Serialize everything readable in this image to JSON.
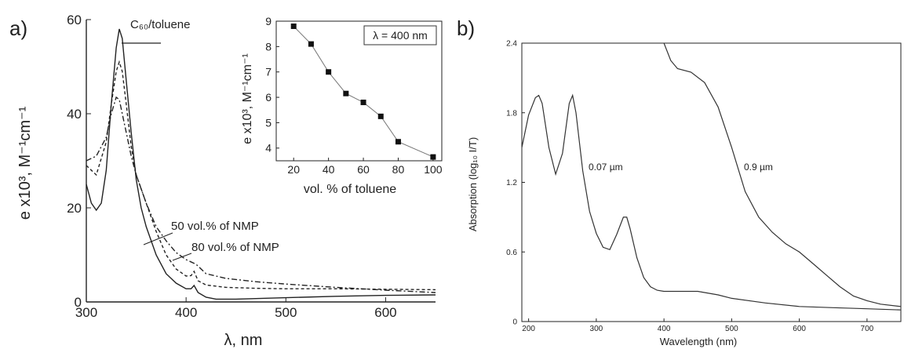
{
  "panels": {
    "a": {
      "label": "a)",
      "chart_data": {
        "type": "line",
        "xlabel": "λ, nm",
        "ylabel": "e x10³, M⁻¹cm⁻¹",
        "xlim": [
          300,
          650
        ],
        "ylim": [
          0,
          60
        ],
        "xticks": [
          300,
          400,
          500,
          600
        ],
        "yticks": [
          0,
          20,
          40,
          60
        ],
        "grid": false,
        "annotations": [
          "C₆₀/toluene",
          "50 vol.% of NMP",
          "80 vol.% of NMP"
        ],
        "series": [
          {
            "name": "C₆₀/toluene",
            "style": "solid",
            "x": [
              300,
              305,
              310,
              315,
              320,
              325,
              330,
              333,
              336,
              340,
              345,
              350,
              355,
              360,
              370,
              380,
              390,
              400,
              405,
              408,
              412,
              420,
              430,
              450,
              500,
              550,
              600,
              650
            ],
            "y": [
              25,
              21,
              19.5,
              21,
              28,
              42,
              54,
              58,
              56,
              47,
              36,
              26,
              20,
              16,
              10,
              6,
              4,
              2.8,
              2.8,
              3.5,
              2,
              1,
              0.6,
              0.6,
              0.9,
              1.2,
              1.4,
              1.5
            ]
          },
          {
            "name": "80 vol.% of NMP",
            "style": "dashed",
            "x": [
              300,
              310,
              320,
              325,
              330,
              333,
              336,
              340,
              345,
              350,
              360,
              370,
              380,
              390,
              400,
              405,
              408,
              412,
              420,
              440,
              470,
              500,
              550,
              600,
              650
            ],
            "y": [
              29,
              27,
              34,
              42,
              49,
              51,
              49,
              42,
              33,
              27,
              21,
              15,
              10,
              7,
              5.5,
              5.6,
              6.5,
              4.5,
              3.6,
              3.1,
              2.9,
              2.8,
              2.8,
              2.7,
              2.6
            ]
          },
          {
            "name": "50 vol.% of NMP",
            "style": "dashdot",
            "x": [
              300,
              310,
              320,
              325,
              330,
              333,
              336,
              340,
              345,
              350,
              360,
              370,
              380,
              390,
              400,
              410,
              420,
              440,
              470,
              500,
              550,
              600,
              650
            ],
            "y": [
              30,
              31,
              35,
              40,
              43.5,
              43,
              40,
              36,
              31,
              27,
              21,
              16,
              13,
              10.5,
              9,
              8,
              6,
              5,
              4.3,
              3.8,
              3.1,
              2.5,
              2
            ]
          }
        ]
      },
      "inset": {
        "chart_data": {
          "type": "line",
          "xlabel": "vol. % of toluene",
          "ylabel": "e x10³, M⁻¹cm⁻¹",
          "xlim": [
            10,
            105
          ],
          "ylim": [
            3.5,
            9
          ],
          "xticks": [
            20,
            40,
            60,
            80,
            100
          ],
          "yticks": [
            4,
            5,
            6,
            7,
            8,
            9
          ],
          "grid": false,
          "legend": "λ = 400 nm",
          "series": [
            {
              "x": [
                20,
                30,
                40,
                50,
                60,
                70,
                80,
                100
              ],
              "y": [
                8.8,
                8.1,
                7.0,
                6.15,
                5.8,
                5.25,
                4.25,
                3.65
              ]
            }
          ]
        }
      }
    },
    "b": {
      "label": "b)",
      "chart_data": {
        "type": "line",
        "xlabel": "Wavelength (nm)",
        "ylabel": "Absorption (log₁₀ I/T)",
        "xlim": [
          190,
          750
        ],
        "ylim": [
          0,
          2.4
        ],
        "xticks": [
          200,
          300,
          400,
          500,
          600,
          700
        ],
        "yticks": [
          0,
          0.6,
          1.2,
          1.8,
          2.4
        ],
        "grid": false,
        "annotations": [
          "0.07 µm",
          "0.9 µm"
        ],
        "series": [
          {
            "name": "0.07 µm",
            "x": [
              190,
              200,
              210,
              215,
              220,
              230,
              240,
              250,
              260,
              265,
              270,
              280,
              290,
              300,
              310,
              320,
              330,
              340,
              345,
              350,
              360,
              370,
              380,
              390,
              400,
              420,
              450,
              480,
              500,
              550,
              600,
              650,
              700,
              750
            ],
            "y": [
              1.5,
              1.78,
              1.93,
              1.95,
              1.88,
              1.5,
              1.27,
              1.45,
              1.88,
              1.95,
              1.8,
              1.3,
              0.95,
              0.76,
              0.64,
              0.62,
              0.75,
              0.9,
              0.9,
              0.8,
              0.55,
              0.38,
              0.3,
              0.27,
              0.26,
              0.26,
              0.26,
              0.23,
              0.2,
              0.16,
              0.13,
              0.12,
              0.11,
              0.1
            ]
          },
          {
            "name": "0.9 µm",
            "x": [
              400,
              410,
              420,
              440,
              460,
              480,
              500,
              520,
              540,
              560,
              580,
              600,
              620,
              640,
              660,
              680,
              700,
              720,
              750
            ],
            "y": [
              2.4,
              2.25,
              2.18,
              2.15,
              2.06,
              1.85,
              1.5,
              1.12,
              0.9,
              0.77,
              0.67,
              0.6,
              0.5,
              0.4,
              0.3,
              0.22,
              0.18,
              0.15,
              0.13
            ]
          }
        ]
      }
    }
  }
}
